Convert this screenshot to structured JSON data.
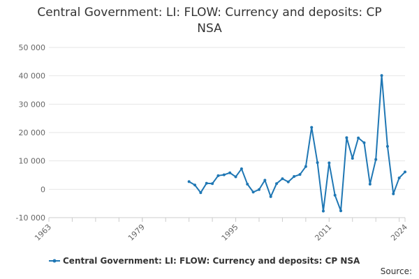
{
  "chart_data": {
    "type": "line",
    "title_line1": "Central Government: LI: FLOW: Currency and deposits: CP",
    "title_line2": "NSA",
    "xlabel": "",
    "ylabel": "",
    "xlim": [
      1963,
      2024
    ],
    "ylim": [
      -10000,
      50000
    ],
    "y_ticks": [
      50000,
      40000,
      30000,
      20000,
      10000,
      0,
      -10000
    ],
    "y_tick_labels": [
      "50 000",
      "40 000",
      "30 000",
      "20 000",
      "10 000",
      "0",
      "-10 000"
    ],
    "x_ticks": [
      1963,
      1979,
      1995,
      2011,
      2024
    ],
    "x_tick_labels": [
      "1963",
      "1979",
      "1995",
      "2011",
      "2024"
    ],
    "grid": "horizontal",
    "legend_position": "bottom",
    "series": [
      {
        "name": "Central Government: LI: FLOW: Currency and deposits: CP NSA",
        "color": "#1f77b4",
        "x": [
          1987,
          1988,
          1989,
          1990,
          1991,
          1992,
          1993,
          1994,
          1995,
          1996,
          1997,
          1998,
          1999,
          2000,
          2001,
          2002,
          2003,
          2004,
          2005,
          2006,
          2007,
          2008,
          2009,
          2010,
          2011,
          2012,
          2013,
          2014,
          2015,
          2016,
          2017,
          2018,
          2019,
          2020,
          2021,
          2022,
          2023,
          2024
        ],
        "y": [
          2700,
          1500,
          -1200,
          2100,
          2000,
          4800,
          5100,
          5800,
          4400,
          7200,
          1800,
          -1000,
          -100,
          3200,
          -2600,
          2000,
          3700,
          2600,
          4500,
          5200,
          8000,
          21800,
          9400,
          -7700,
          9300,
          -2100,
          -7600,
          18200,
          10900,
          18100,
          16400,
          1800,
          10500,
          40100,
          15100,
          -1600,
          4000,
          6100
        ]
      }
    ]
  },
  "legend": {
    "label": "Central Government: LI: FLOW: Currency and deposits: CP NSA"
  },
  "source_label": "Source:"
}
